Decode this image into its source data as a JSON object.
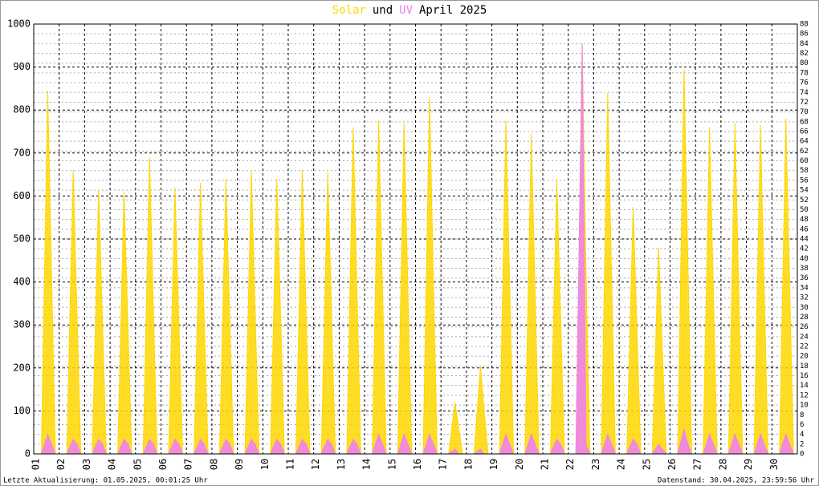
{
  "chart_data": {
    "type": "area",
    "title_parts": [
      {
        "text": "Solar",
        "color": "#ffd700"
      },
      {
        "text": "und",
        "color": "#000000"
      },
      {
        "text": "UV",
        "color": "#ee82ee"
      },
      {
        "text": "April 2025",
        "color": "#000000"
      }
    ],
    "xlim": [
      1,
      31
    ],
    "xticks": [
      {
        "value": 1,
        "label": "01"
      },
      {
        "value": 2,
        "label": "02"
      },
      {
        "value": 3,
        "label": "03"
      },
      {
        "value": 4,
        "label": "04"
      },
      {
        "value": 5,
        "label": "05"
      },
      {
        "value": 6,
        "label": "06"
      },
      {
        "value": 7,
        "label": "07"
      },
      {
        "value": 8,
        "label": "08"
      },
      {
        "value": 9,
        "label": "09"
      },
      {
        "value": 10,
        "label": "10"
      },
      {
        "value": 11,
        "label": "11"
      },
      {
        "value": 12,
        "label": "12"
      },
      {
        "value": 13,
        "label": "13"
      },
      {
        "value": 14,
        "label": "14"
      },
      {
        "value": 15,
        "label": "15"
      },
      {
        "value": 16,
        "label": "16"
      },
      {
        "value": 17,
        "label": "17"
      },
      {
        "value": 18,
        "label": "18"
      },
      {
        "value": 19,
        "label": "19"
      },
      {
        "value": 20,
        "label": "20"
      },
      {
        "value": 21,
        "label": "21"
      },
      {
        "value": 22,
        "label": "22"
      },
      {
        "value": 23,
        "label": "23"
      },
      {
        "value": 24,
        "label": "24"
      },
      {
        "value": 25,
        "label": "25"
      },
      {
        "value": 26,
        "label": "26"
      },
      {
        "value": 27,
        "label": "27"
      },
      {
        "value": 28,
        "label": "28"
      },
      {
        "value": 29,
        "label": "29"
      },
      {
        "value": 30,
        "label": "30"
      }
    ],
    "ylim": [
      0,
      1000
    ],
    "yticks": [
      0,
      100,
      200,
      300,
      400,
      500,
      600,
      700,
      800,
      900,
      1000
    ],
    "y2lim": [
      0,
      88
    ],
    "y2ticks": [
      0,
      2,
      4,
      6,
      8,
      10,
      12,
      14,
      16,
      18,
      20,
      22,
      24,
      26,
      28,
      30,
      32,
      34,
      36,
      38,
      40,
      42,
      44,
      46,
      48,
      50,
      52,
      54,
      56,
      58,
      60,
      62,
      64,
      66,
      68,
      70,
      72,
      74,
      76,
      78,
      80,
      82,
      84,
      86,
      88
    ],
    "grid": true,
    "x": [
      1.3,
      1.55,
      1.7,
      1.85,
      2.3,
      2.55,
      2.7,
      2.85,
      3.3,
      3.55,
      3.7,
      3.85,
      4.3,
      4.55,
      4.7,
      4.85,
      5.3,
      5.55,
      5.7,
      5.85,
      6.3,
      6.55,
      6.7,
      6.85,
      7.3,
      7.55,
      7.7,
      7.85,
      8.3,
      8.55,
      8.7,
      8.85,
      9.3,
      9.55,
      9.7,
      9.85,
      10.3,
      10.55,
      10.7,
      10.85,
      11.3,
      11.55,
      11.7,
      11.85,
      12.3,
      12.55,
      12.7,
      12.85,
      13.3,
      13.55,
      13.7,
      13.85,
      14.3,
      14.55,
      14.7,
      14.85,
      15.3,
      15.55,
      15.7,
      15.85,
      16.3,
      16.55,
      16.7,
      16.85,
      17.3,
      17.55,
      17.7,
      17.85,
      18.3,
      18.55,
      18.7,
      18.85,
      19.3,
      19.55,
      19.7,
      19.85,
      20.3,
      20.55,
      20.7,
      20.85,
      21.3,
      21.55,
      21.7,
      21.85,
      22.3,
      22.55,
      22.7,
      22.85,
      23.3,
      23.55,
      23.7,
      23.85,
      24.3,
      24.55,
      24.7,
      24.85,
      25.3,
      25.55,
      25.7,
      25.85,
      26.3,
      26.55,
      26.7,
      26.85,
      27.3,
      27.55,
      27.7,
      27.85,
      28.3,
      28.55,
      28.7,
      28.85,
      29.3,
      29.55,
      29.7,
      29.85,
      30.3,
      30.55,
      30.7,
      30.85
    ],
    "series": [
      {
        "name": "Solar",
        "color": "#ffd700",
        "values": [
          0,
          845,
          420,
          0,
          0,
          660,
          330,
          0,
          0,
          615,
          310,
          0,
          0,
          610,
          300,
          0,
          0,
          690,
          340,
          0,
          0,
          620,
          310,
          0,
          0,
          630,
          310,
          0,
          0,
          640,
          320,
          0,
          0,
          660,
          330,
          0,
          0,
          640,
          320,
          0,
          0,
          660,
          330,
          0,
          0,
          655,
          330,
          0,
          0,
          760,
          380,
          0,
          0,
          775,
          390,
          0,
          0,
          770,
          380,
          0,
          0,
          830,
          410,
          0,
          0,
          120,
          60,
          0,
          0,
          205,
          100,
          0,
          0,
          775,
          390,
          0,
          0,
          745,
          370,
          0,
          0,
          640,
          320,
          0,
          0,
          950,
          420,
          0,
          0,
          840,
          420,
          0,
          0,
          575,
          290,
          0,
          0,
          480,
          240,
          0,
          0,
          895,
          450,
          0,
          0,
          760,
          380,
          0,
          0,
          770,
          380,
          0,
          0,
          765,
          380,
          0,
          0,
          780,
          390,
          0
        ]
      },
      {
        "name": "UV",
        "color": "#ee82ee",
        "axis": "y2",
        "values": [
          0,
          4,
          2,
          0,
          0,
          3,
          2,
          0,
          0,
          3,
          2,
          0,
          0,
          3,
          2,
          0,
          0,
          3,
          2,
          0,
          0,
          3,
          2,
          0,
          0,
          3,
          2,
          0,
          0,
          3,
          2,
          0,
          0,
          3,
          2,
          0,
          0,
          3,
          2,
          0,
          0,
          3,
          2,
          0,
          0,
          3,
          2,
          0,
          0,
          3,
          2,
          0,
          0,
          4,
          2,
          0,
          0,
          4,
          2,
          0,
          0,
          4,
          2,
          0,
          0,
          1,
          0,
          0,
          0,
          1,
          0,
          0,
          0,
          4,
          2,
          0,
          0,
          4,
          2,
          0,
          0,
          3,
          2,
          0,
          0,
          84,
          2,
          0,
          0,
          4,
          2,
          0,
          0,
          3,
          2,
          0,
          0,
          2,
          1,
          0,
          0,
          5,
          2,
          0,
          0,
          4,
          2,
          0,
          0,
          4,
          2,
          0,
          0,
          4,
          2,
          0,
          0,
          4,
          2,
          0
        ]
      }
    ],
    "footer_left": "Letzte Aktualisierung: 01.05.2025, 00:01:25 Uhr",
    "footer_right": "Datenstand: 30.04.2025, 23:59:56 Uhr"
  }
}
